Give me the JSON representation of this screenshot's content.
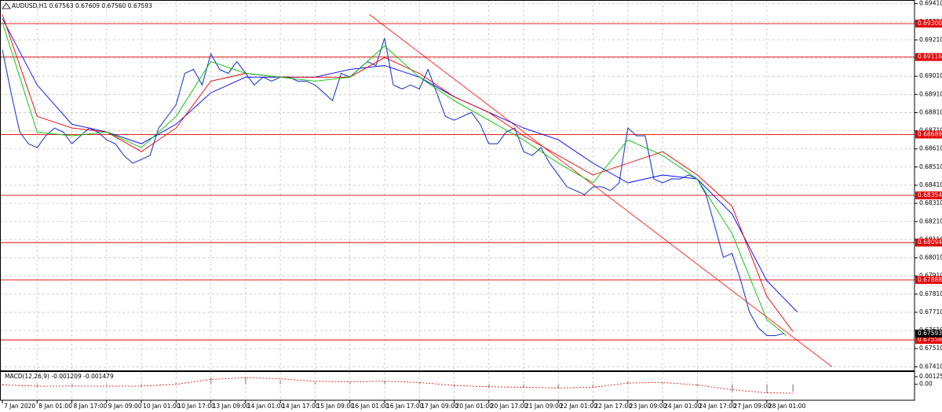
{
  "chart_data": [
    {
      "type": "line",
      "title": "AUDUSD,H1  0.67563 0.67609 0.67560 0.67593",
      "xlim": [
        0,
        420
      ],
      "xticks": [
        {
          "value": 0,
          "label": "7 Jan 2020"
        },
        {
          "value": 16,
          "label": "8 Jan 01:00"
        },
        {
          "value": 32,
          "label": "8 Jan 17:00"
        },
        {
          "value": 48,
          "label": "9 Jan 09:00"
        },
        {
          "value": 64,
          "label": "10 Jan 01:00"
        },
        {
          "value": 80,
          "label": "10 Jan 17:00"
        },
        {
          "value": 96,
          "label": "13 Jan 09:00"
        },
        {
          "value": 112,
          "label": "14 Jan 01:00"
        },
        {
          "value": 128,
          "label": "14 Jan 17:00"
        },
        {
          "value": 144,
          "label": "15 Jan 09:00"
        },
        {
          "value": 160,
          "label": "16 Jan 01:00"
        },
        {
          "value": 176,
          "label": "16 Jan 17:00"
        },
        {
          "value": 192,
          "label": "17 Jan 09:00"
        },
        {
          "value": 208,
          "label": "20 Jan 01:00"
        },
        {
          "value": 224,
          "label": "20 Jan 17:00"
        },
        {
          "value": 240,
          "label": "21 Jan 09:00"
        },
        {
          "value": 256,
          "label": "22 Jan 01:00"
        },
        {
          "value": 272,
          "label": "22 Jan 17:00"
        },
        {
          "value": 288,
          "label": "23 Jan 09:00"
        },
        {
          "value": 304,
          "label": "24 Jan 01:00"
        },
        {
          "value": 320,
          "label": "24 Jan 17:00"
        },
        {
          "value": 336,
          "label": "27 Jan 09:00"
        },
        {
          "value": 352,
          "label": "28 Jan 01:00"
        }
      ],
      "ylim": [
        0.6739,
        0.6943
      ],
      "yticks": [
        {
          "value": 0.6741,
          "label": "0.67410"
        },
        {
          "value": 0.6751,
          "label": "0.67510"
        },
        {
          "value": 0.6761,
          "label": "0.67610"
        },
        {
          "value": 0.6771,
          "label": "0.67710"
        },
        {
          "value": 0.6781,
          "label": "0.67810"
        },
        {
          "value": 0.6791,
          "label": "0.67910"
        },
        {
          "value": 0.6801,
          "label": "0.68010"
        },
        {
          "value": 0.6811,
          "label": "0.68110"
        },
        {
          "value": 0.6821,
          "label": "0.68210"
        },
        {
          "value": 0.6831,
          "label": "0.68310"
        },
        {
          "value": 0.6841,
          "label": "0.68410"
        },
        {
          "value": 0.6851,
          "label": "0.68510"
        },
        {
          "value": 0.6861,
          "label": "0.68610"
        },
        {
          "value": 0.6871,
          "label": "0.68710"
        },
        {
          "value": 0.6881,
          "label": "0.68810"
        },
        {
          "value": 0.6891,
          "label": "0.68910"
        },
        {
          "value": 0.6901,
          "label": "0.69010"
        },
        {
          "value": 0.6911,
          "label": "0.69110"
        },
        {
          "value": 0.6921,
          "label": "0.69210"
        },
        {
          "value": 0.6931,
          "label": "0.69310"
        },
        {
          "value": 0.6941,
          "label": "0.69410"
        }
      ],
      "grid": true,
      "series": [
        {
          "color": "#2340c8",
          "x": [
            0,
            4,
            8,
            12,
            16,
            20,
            24,
            28,
            32,
            36,
            40,
            44,
            48,
            52,
            56,
            60,
            64,
            68,
            72,
            76,
            80,
            84,
            88,
            92,
            96,
            100,
            104,
            108,
            112,
            116,
            120,
            124,
            128,
            132,
            136,
            140,
            144,
            148,
            152,
            156,
            160,
            164,
            168,
            172,
            176,
            180,
            184,
            188,
            192,
            196,
            200,
            204,
            208,
            212,
            216,
            220,
            224,
            228,
            232,
            236,
            240,
            244,
            248,
            252,
            256,
            260,
            264,
            268,
            272,
            276,
            280,
            284,
            288,
            292,
            296,
            300,
            304,
            308,
            312,
            316,
            320,
            324,
            328,
            332,
            336,
            340,
            344,
            348,
            352,
            356,
            360
          ],
          "values": [
            0.69156,
            0.68919,
            0.68703,
            0.68638,
            0.68617,
            0.68682,
            0.68725,
            0.68703,
            0.68638,
            0.68682,
            0.68725,
            0.68703,
            0.6866,
            0.68638,
            0.68574,
            0.68531,
            0.68552,
            0.68574,
            0.68725,
            0.68789,
            0.68854,
            0.69026,
            0.69048,
            0.68962,
            0.69134,
            0.69048,
            0.69026,
            0.69091,
            0.69026,
            0.68962,
            0.69005,
            0.68983,
            0.69005,
            0.69005,
            0.68983,
            0.68983,
            0.68962,
            0.68919,
            0.68876,
            0.69026,
            0.69005,
            0.69048,
            0.69091,
            0.69069,
            0.6922,
            0.68962,
            0.6894,
            0.68962,
            0.6894,
            0.69048,
            0.68919,
            0.68789,
            0.68768,
            0.68789,
            0.68811,
            0.68746,
            0.68638,
            0.68638,
            0.68703,
            0.68725,
            0.68595,
            0.68574,
            0.68617,
            0.68531,
            0.68466,
            0.68401,
            0.6838,
            0.68358,
            0.68401,
            0.68401,
            0.6838,
            0.68423,
            0.68725,
            0.68682,
            0.68682,
            0.68444,
            0.68423,
            0.68444,
            0.68444,
            0.68466,
            0.68444,
            0.68358,
            0.68186,
            0.68013,
            0.68035,
            0.67884,
            0.67712,
            0.67626,
            0.67582,
            0.67582,
            0.67593
          ]
        },
        {
          "color": "#0000ff",
          "x": [
            0,
            16,
            32,
            48,
            64,
            80,
            96,
            112,
            128,
            144,
            160,
            176,
            192,
            208,
            224,
            240,
            256,
            272,
            288,
            304,
            320,
            336,
            352,
            366
          ],
          "values": [
            0.69328,
            0.68962,
            0.68746,
            0.68703,
            0.68638,
            0.68746,
            0.68919,
            0.69005,
            0.69005,
            0.69005,
            0.69048,
            0.69069,
            0.69005,
            0.68897,
            0.68811,
            0.68725,
            0.6866,
            0.68531,
            0.68423,
            0.68466,
            0.68444,
            0.68251,
            0.67884,
            0.67712
          ]
        },
        {
          "color": "#e00000",
          "x": [
            0,
            16,
            32,
            48,
            64,
            80,
            96,
            112,
            128,
            144,
            160,
            176,
            192,
            208,
            224,
            240,
            256,
            272,
            288,
            304,
            320,
            336,
            352,
            364
          ],
          "values": [
            0.6935,
            0.68789,
            0.68725,
            0.68703,
            0.68595,
            0.68725,
            0.68983,
            0.69026,
            0.69005,
            0.69005,
            0.69005,
            0.69113,
            0.69026,
            0.68897,
            0.68811,
            0.68682,
            0.68574,
            0.68466,
            0.68531,
            0.68595,
            0.68466,
            0.68294,
            0.67798,
            0.67604
          ]
        },
        {
          "color": "#00c000",
          "x": [
            0,
            16,
            32,
            48,
            64,
            80,
            96,
            112,
            128,
            144,
            160,
            176,
            192,
            208,
            224,
            240,
            256,
            272,
            288,
            304,
            320,
            336,
            352,
            361
          ],
          "values": [
            0.69307,
            0.68703,
            0.68682,
            0.68703,
            0.68617,
            0.68789,
            0.69091,
            0.69026,
            0.69005,
            0.68983,
            0.69005,
            0.69177,
            0.69005,
            0.68876,
            0.68768,
            0.6866,
            0.68531,
            0.68423,
            0.6866,
            0.68574,
            0.68444,
            0.68143,
            0.67669,
            0.67582
          ]
        }
      ],
      "trendline": {
        "color": "#ff0000",
        "x": [
          169,
          382
        ],
        "values": [
          0.6935,
          0.6741
        ]
      },
      "levels": {
        "color": "#e00000",
        "lines": [
          {
            "value": 0.693,
            "label": "0.69300"
          },
          {
            "value": 0.69116,
            "label": "0.69116"
          },
          {
            "value": 0.68689,
            "label": "0.68689"
          },
          {
            "value": 0.68354,
            "label": "0.68354"
          },
          {
            "value": 0.68094,
            "label": "0.68094"
          },
          {
            "value": 0.67888,
            "label": "0.67888"
          },
          {
            "value": 0.67558,
            "label": "0.67558"
          }
        ]
      },
      "last_price": {
        "value": 0.67593,
        "label": "0.67593"
      }
    },
    {
      "type": "bar",
      "title": "MACD(12,26,9) -0.001209 -0.001479",
      "color": "#b8b8b8",
      "x": [
        0,
        16,
        32,
        48,
        64,
        80,
        96,
        112,
        128,
        144,
        160,
        176,
        192,
        208,
        224,
        240,
        256,
        272,
        288,
        304,
        320,
        336,
        352,
        364
      ],
      "values": [
        -0.0002,
        -0.0004,
        -0.0003,
        -0.0002,
        -0.0003,
        0.0002,
        0.0011,
        0.0012,
        0.0007,
        0.0004,
        0.0003,
        0.0006,
        0.0002,
        -0.0004,
        -0.0005,
        -0.0006,
        -0.0007,
        -0.0004,
        0.0005,
        0.0002,
        -0.0003,
        -0.0012,
        -0.0015,
        -0.001209
      ],
      "signal": {
        "color": "#e00000",
        "values": [
          -0.0001,
          -0.0003,
          -0.0003,
          -0.0003,
          -0.0003,
          0,
          0.0008,
          0.0011,
          0.0009,
          0.0005,
          0.0004,
          0.0005,
          0.0003,
          -0.0002,
          -0.0004,
          -0.0005,
          -0.0006,
          -0.0005,
          0.0002,
          0.0003,
          -0.0001,
          -0.0009,
          -0.0014,
          -0.001479
        ]
      },
      "xlim": [
        0,
        420
      ],
      "ylim": [
        -0.0025,
        0.0019
      ],
      "yticks": [
        0.001254,
        {
          "value": 0,
          "label": "0.00"
        }
      ]
    }
  ]
}
